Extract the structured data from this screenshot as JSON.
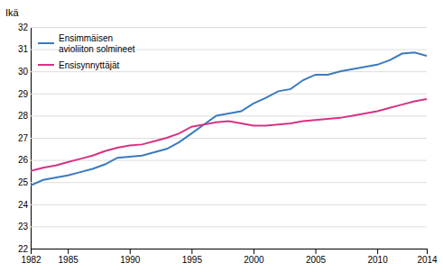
{
  "chart_data": {
    "type": "line",
    "y_label": "Ikä",
    "x": [
      1982,
      1983,
      1984,
      1985,
      1986,
      1987,
      1988,
      1989,
      1990,
      1991,
      1992,
      1993,
      1994,
      1995,
      1996,
      1997,
      1998,
      1999,
      2000,
      2001,
      2002,
      2003,
      2004,
      2005,
      2006,
      2007,
      2008,
      2009,
      2010,
      2011,
      2012,
      2013,
      2014
    ],
    "series": [
      {
        "name": "Ensimmäisen\navioliiton solmineet",
        "color": "#3a7abf",
        "values": [
          24.85,
          25.1,
          25.2,
          25.3,
          25.45,
          25.6,
          25.8,
          26.1,
          26.15,
          26.2,
          26.35,
          26.5,
          26.8,
          27.2,
          27.6,
          28.0,
          28.1,
          28.2,
          28.55,
          28.8,
          29.1,
          29.2,
          29.6,
          29.85,
          29.85,
          30.0,
          30.1,
          30.2,
          30.3,
          30.5,
          30.8,
          30.85,
          30.7
        ]
      },
      {
        "name": "Ensisynnyttäjät",
        "color": "#d63384",
        "values": [
          25.5,
          25.65,
          25.75,
          25.9,
          26.05,
          26.2,
          26.4,
          26.55,
          26.65,
          26.7,
          26.85,
          27.0,
          27.2,
          27.5,
          27.6,
          27.7,
          27.75,
          27.65,
          27.55,
          27.55,
          27.6,
          27.65,
          27.75,
          27.8,
          27.85,
          27.9,
          28.0,
          28.1,
          28.2,
          28.35,
          28.5,
          28.65,
          28.75
        ]
      }
    ],
    "xlim": [
      1982,
      2014
    ],
    "xticks": [
      1982,
      1985,
      1990,
      1995,
      2000,
      2005,
      2010,
      2014
    ],
    "ylim": [
      22,
      32
    ],
    "yticks": [
      22,
      23,
      24,
      25,
      26,
      27,
      28,
      29,
      30,
      31,
      32
    ],
    "grid": "y",
    "legend": "upper left"
  }
}
